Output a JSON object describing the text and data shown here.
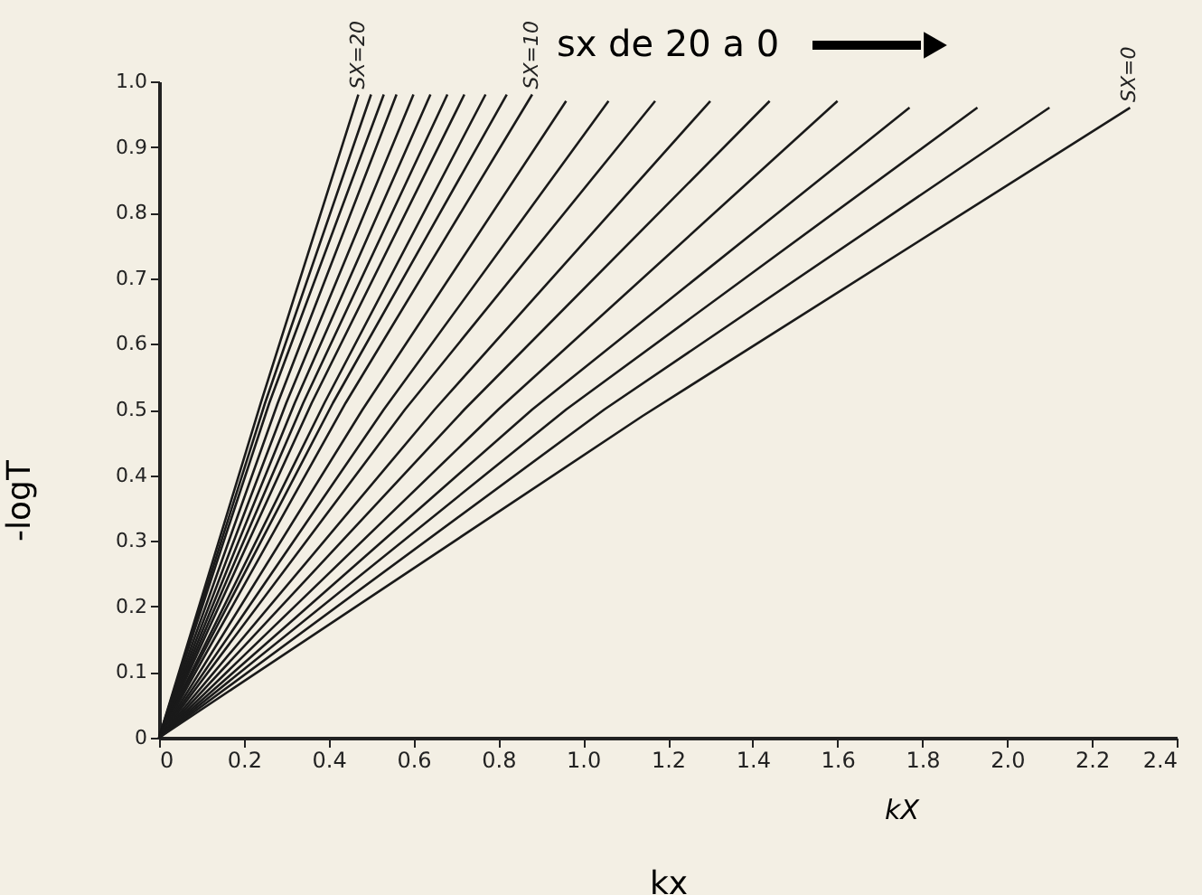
{
  "chart_data": {
    "type": "line",
    "xlabel": "kx",
    "ylabel": "-logT",
    "xlim": [
      0,
      2.4
    ],
    "ylim": [
      0,
      1.0
    ],
    "xticks": [
      0,
      {
        "value": 0.2,
        "label": "0.2"
      },
      {
        "value": 0.4,
        "label": "0.4"
      },
      {
        "value": 0.6,
        "label": "0.6"
      },
      {
        "value": 0.8,
        "label": "0.8"
      },
      {
        "value": 1.0,
        "label": "1.0"
      },
      {
        "value": 1.2,
        "label": "1.2"
      },
      {
        "value": 1.4,
        "label": "1.4"
      },
      {
        "value": 1.6,
        "label": "1.6"
      },
      {
        "value": 1.8,
        "label": "1.8"
      },
      {
        "value": 2.0,
        "label": "2.0"
      },
      {
        "value": 2.2,
        "label": "2.2"
      },
      {
        "value": 2.4,
        "label": "2.4"
      }
    ],
    "yticks": [
      0,
      {
        "value": 0.1,
        "label": "0.1"
      },
      {
        "value": 0.2,
        "label": "0.2"
      },
      {
        "value": 0.3,
        "label": "0.3"
      },
      {
        "value": 0.4,
        "label": "0.4"
      },
      {
        "value": 0.5,
        "label": "0.5"
      },
      {
        "value": 0.6,
        "label": "0.6"
      },
      {
        "value": 0.7,
        "label": "0.7"
      },
      {
        "value": 0.8,
        "label": "0.8"
      },
      {
        "value": 0.9,
        "label": "0.9"
      },
      {
        "value": 1.0,
        "label": "1.0"
      }
    ],
    "grid": false,
    "legend": false,
    "marker": "none",
    "line_style": "solid",
    "annotations": [
      "sx de 20 a 0",
      "kX",
      {
        "text": "SX=20",
        "x": 0.47,
        "y": 0.98
      },
      {
        "text": "SX=10",
        "x": 0.88,
        "y": 0.98
      },
      {
        "text": "SX=0",
        "x": 2.29,
        "y": 0.96
      }
    ],
    "series": [
      {
        "color": "#1a1a1a",
        "x": [
          0,
          0.24,
          0.47
        ],
        "values": [
          0,
          0.51,
          0.98
        ]
      },
      {
        "color": "#1a1a1a",
        "x": [
          0,
          0.25,
          0.5
        ],
        "values": [
          0,
          0.51,
          0.98
        ]
      },
      {
        "color": "#1a1a1a",
        "x": [
          0,
          0.26,
          0.53
        ],
        "values": [
          0,
          0.51,
          0.98
        ]
      },
      {
        "color": "#1a1a1a",
        "x": [
          0,
          0.28,
          0.56
        ],
        "values": [
          0,
          0.51,
          0.98
        ]
      },
      {
        "color": "#1a1a1a",
        "x": [
          0,
          0.3,
          0.6
        ],
        "values": [
          0,
          0.51,
          0.98
        ]
      },
      {
        "color": "#1a1a1a",
        "x": [
          0,
          0.32,
          0.64
        ],
        "values": [
          0,
          0.51,
          0.98
        ]
      },
      {
        "color": "#1a1a1a",
        "x": [
          0,
          0.34,
          0.68
        ],
        "values": [
          0,
          0.51,
          0.98
        ]
      },
      {
        "color": "#1a1a1a",
        "x": [
          0,
          0.36,
          0.72
        ],
        "values": [
          0,
          0.51,
          0.98
        ]
      },
      {
        "color": "#1a1a1a",
        "x": [
          0,
          0.39,
          0.77
        ],
        "values": [
          0,
          0.51,
          0.98
        ]
      },
      {
        "color": "#1a1a1a",
        "x": [
          0,
          0.41,
          0.82
        ],
        "values": [
          0,
          0.51,
          0.98
        ]
      },
      {
        "color": "#1a1a1a",
        "x": [
          0,
          0.44,
          0.88
        ],
        "values": [
          0,
          0.51,
          0.98
        ]
      },
      {
        "color": "#1a1a1a",
        "x": [
          0,
          0.48,
          0.96
        ],
        "values": [
          0,
          0.5,
          0.97
        ]
      },
      {
        "color": "#1a1a1a",
        "x": [
          0,
          0.53,
          1.06
        ],
        "values": [
          0,
          0.5,
          0.97
        ]
      },
      {
        "color": "#1a1a1a",
        "x": [
          0,
          0.58,
          1.17
        ],
        "values": [
          0,
          0.5,
          0.97
        ]
      },
      {
        "color": "#1a1a1a",
        "x": [
          0,
          0.65,
          1.3
        ],
        "values": [
          0,
          0.5,
          0.97
        ]
      },
      {
        "color": "#1a1a1a",
        "x": [
          0,
          0.72,
          1.44
        ],
        "values": [
          0,
          0.5,
          0.97
        ]
      },
      {
        "color": "#1a1a1a",
        "x": [
          0,
          0.8,
          1.6
        ],
        "values": [
          0,
          0.5,
          0.97
        ]
      },
      {
        "color": "#1a1a1a",
        "x": [
          0,
          0.88,
          1.77
        ],
        "values": [
          0,
          0.5,
          0.96
        ]
      },
      {
        "color": "#1a1a1a",
        "x": [
          0,
          0.96,
          1.93
        ],
        "values": [
          0,
          0.5,
          0.96
        ]
      },
      {
        "color": "#1a1a1a",
        "x": [
          0,
          1.05,
          2.1
        ],
        "values": [
          0,
          0.5,
          0.96
        ]
      },
      {
        "color": "#1a1a1a",
        "x": [
          0,
          1.14,
          2.29
        ],
        "values": [
          0,
          0.49,
          0.96
        ]
      }
    ]
  }
}
